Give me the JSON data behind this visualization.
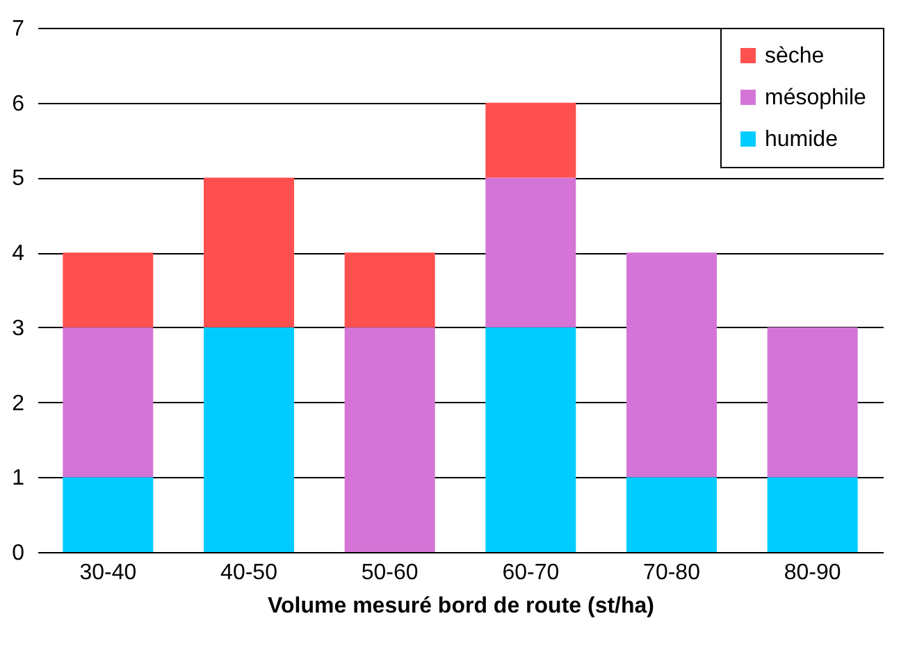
{
  "chart_data": {
    "type": "bar",
    "stacked": true,
    "xlabel": "Volume mesuré bord de route (st/ha)",
    "categories": [
      "30-40",
      "40-50",
      "50-60",
      "60-70",
      "70-80",
      "80-90"
    ],
    "series": [
      {
        "name": "humide",
        "color": "#00ccff",
        "values": [
          1,
          3,
          0,
          3,
          1,
          1
        ]
      },
      {
        "name": "mésophile",
        "color": "#d474d6",
        "values": [
          2,
          0,
          3,
          2,
          3,
          2
        ]
      },
      {
        "name": "sèche",
        "color": "#ff5050",
        "values": [
          1,
          2,
          1,
          1,
          0,
          0
        ]
      }
    ],
    "ylim": [
      0,
      7
    ],
    "yticks": [
      0,
      1,
      2,
      3,
      4,
      5,
      6,
      7
    ],
    "grid": "y",
    "legend": "top right"
  }
}
